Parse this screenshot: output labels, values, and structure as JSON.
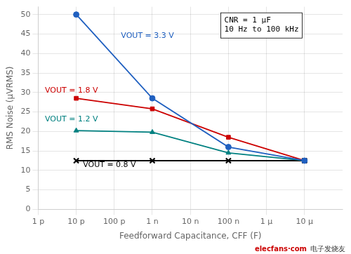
{
  "chart_data": {
    "type": "line",
    "xlabel": "Feedforward Capacitance, CFF (F)",
    "ylabel": "RMS Noise (μVRMS)",
    "log": "x",
    "grid": true,
    "xlim": [
      1e-12,
      0.0001
    ],
    "xticks": [
      {
        "value": 1e-12,
        "label": "1 p"
      },
      {
        "value": 1e-11,
        "label": "10 p"
      },
      {
        "value": 1e-10,
        "label": "100 p"
      },
      {
        "value": 1e-09,
        "label": "1 n"
      },
      {
        "value": 1e-08,
        "label": "10 n"
      },
      {
        "value": 1e-07,
        "label": "100 n"
      },
      {
        "value": 1e-06,
        "label": "1 μ"
      },
      {
        "value": 1e-05,
        "label": "10 μ"
      }
    ],
    "ylim": [
      0,
      52
    ],
    "yticks": [
      0,
      5,
      10,
      15,
      20,
      25,
      30,
      35,
      40,
      45,
      50
    ],
    "x": [
      1e-11,
      1e-09,
      1e-07,
      1e-05
    ],
    "series": [
      {
        "name": "VOUT = 3.3 V",
        "color": "#2060c0",
        "marker": "circle",
        "values": [
          50.0,
          28.5,
          16.0,
          12.5
        ]
      },
      {
        "name": "VOUT = 1.8 V",
        "color": "#cc0000",
        "marker": "square",
        "values": [
          28.5,
          25.8,
          18.5,
          12.5
        ]
      },
      {
        "name": "VOUT = 1.2 V",
        "color": "#008080",
        "marker": "triangle",
        "values": [
          20.2,
          19.8,
          14.5,
          12.5
        ]
      },
      {
        "name": "VOUT = 0.8 V",
        "color": "#000000",
        "marker": "x",
        "values": [
          12.5,
          12.5,
          12.5,
          12.5
        ]
      }
    ],
    "annotations": [
      {
        "text": "VOUT = 3.3 V",
        "x": 1.5e-10,
        "y": 44.0,
        "color": "#2060c0"
      },
      {
        "text": "VOUT = 1.8 V",
        "x": 1.5e-12,
        "y": 30.0,
        "color": "#cc0000"
      },
      {
        "text": "VOUT = 1.2 V",
        "x": 1.5e-12,
        "y": 22.5,
        "color": "#008080"
      },
      {
        "text": "VOUT = 0.8 V",
        "x": 1.5e-11,
        "y": 10.8,
        "color": "#000000"
      }
    ],
    "text_box": [
      "CNR = 1 μF",
      "10 Hz to 100 kHz"
    ],
    "watermark": [
      {
        "text": "elecfans·com",
        "color": "#cc0000"
      },
      {
        "text": "电子发烧友",
        "color": "#333333"
      }
    ]
  }
}
